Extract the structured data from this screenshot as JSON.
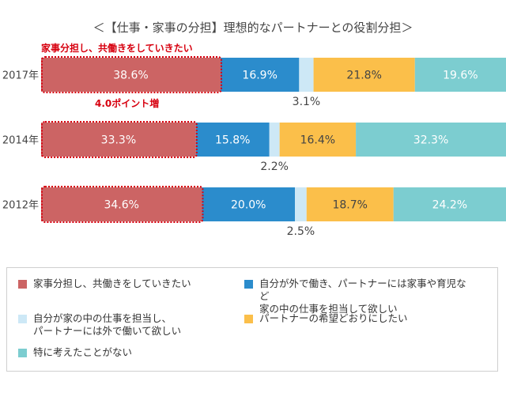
{
  "chart_data": {
    "type": "bar",
    "orientation": "horizontal",
    "stacked": true,
    "title": "＜【仕事・家事の分担】理想的なパートナーとの役割分担＞",
    "categories": [
      "2017年",
      "2014年",
      "2012年"
    ],
    "series": [
      {
        "name": "家事分担し、共働きをしていきたい",
        "values": [
          38.6,
          33.3,
          34.6
        ],
        "labels": [
          "38.6%",
          "33.3%",
          "34.6%"
        ],
        "color": "#cc6464"
      },
      {
        "name": "自分が外で働き、パートナーには家事や育児など\n家の中の仕事を担当して欲しい",
        "values": [
          16.9,
          15.8,
          20.0
        ],
        "labels": [
          "16.9%",
          "15.8%",
          "20.0%"
        ],
        "color": "#2b8ccc"
      },
      {
        "name": "自分が家の中の仕事を担当し、\nパートナーには外で働いて欲しい",
        "values": [
          3.1,
          2.2,
          2.5
        ],
        "labels": [
          "3.1%",
          "2.2%",
          "2.5%"
        ],
        "color": "#cde8f6"
      },
      {
        "name": "パートナーの希望どおりにしたい",
        "values": [
          21.8,
          16.4,
          18.7
        ],
        "labels": [
          "21.8%",
          "16.4%",
          "18.7%"
        ],
        "color": "#fbbf4a"
      },
      {
        "name": "特に考えたことがない",
        "values": [
          19.6,
          32.3,
          24.2
        ],
        "labels": [
          "19.6%",
          "32.3%",
          "24.2%"
        ],
        "color": "#7ccdd0"
      }
    ],
    "xlim": [
      0,
      100
    ],
    "grid": false,
    "legend_position": "bottom",
    "annotations": {
      "top_note": "家事分担し、共働きをしていきたい",
      "change_note": "4.0ポイント増"
    }
  }
}
